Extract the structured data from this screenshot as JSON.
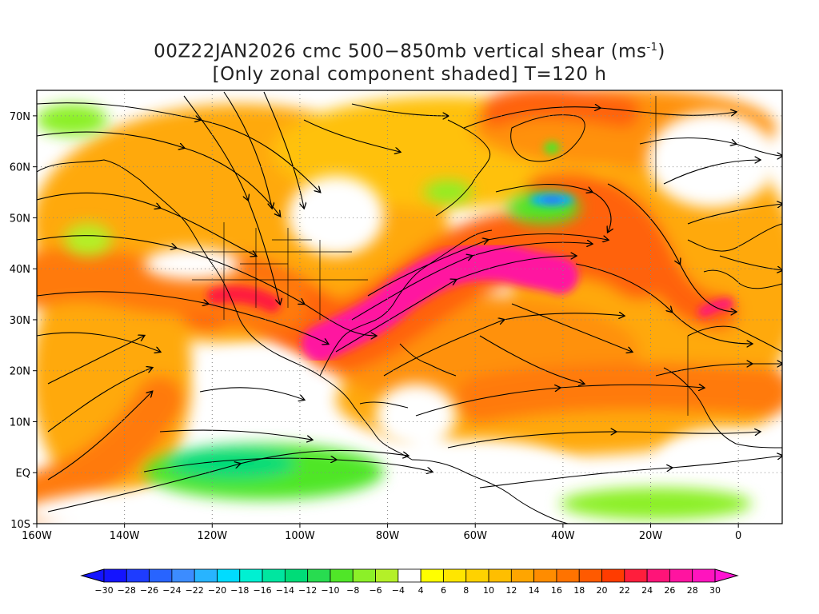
{
  "title": {
    "line1_prefix": "00Z22JAN2026 cmc 500−850mb vertical shear (ms",
    "line1_sup": "-1",
    "line1_suffix": ")",
    "line2": "[Only zonal component shaded] T=120 h"
  },
  "map": {
    "lon_range": [
      -160,
      10
    ],
    "lat_range": [
      -10,
      75
    ],
    "x_ticks": [
      {
        "lon": -160,
        "label": "160W"
      },
      {
        "lon": -140,
        "label": "140W"
      },
      {
        "lon": -120,
        "label": "120W"
      },
      {
        "lon": -100,
        "label": "100W"
      },
      {
        "lon": -80,
        "label": "80W"
      },
      {
        "lon": -60,
        "label": "60W"
      },
      {
        "lon": -40,
        "label": "40W"
      },
      {
        "lon": -20,
        "label": "20W"
      },
      {
        "lon": 0,
        "label": "0"
      }
    ],
    "y_ticks": [
      {
        "lat": 70,
        "label": "70N"
      },
      {
        "lat": 60,
        "label": "60N"
      },
      {
        "lat": 50,
        "label": "50N"
      },
      {
        "lat": 40,
        "label": "40N"
      },
      {
        "lat": 30,
        "label": "30N"
      },
      {
        "lat": 20,
        "label": "20N"
      },
      {
        "lat": 10,
        "label": "10N"
      },
      {
        "lat": 0,
        "label": "EQ"
      },
      {
        "lat": -10,
        "label": "10S"
      }
    ],
    "gridlines": "dotted"
  },
  "colorbar": {
    "labels": [
      "-30",
      "-28",
      "-26",
      "-24",
      "-22",
      "-20",
      "-18",
      "-16",
      "-14",
      "-12",
      "-10",
      "-8",
      "-6",
      "-4",
      "4",
      "6",
      "8",
      "10",
      "12",
      "14",
      "16",
      "18",
      "20",
      "22",
      "24",
      "26",
      "28",
      "30"
    ],
    "colors": [
      "#1414ff",
      "#1e3cff",
      "#2864ff",
      "#3c8cff",
      "#28b4ff",
      "#00dcff",
      "#00f0d2",
      "#00e6a0",
      "#00dc78",
      "#28dc50",
      "#50e628",
      "#8cf028",
      "#b4f028",
      "#ffffff",
      "#ffff00",
      "#ffe600",
      "#ffd200",
      "#ffbe00",
      "#ffa500",
      "#ff8c00",
      "#ff7300",
      "#ff5a00",
      "#ff3c00",
      "#ff1e3c",
      "#ff1478",
      "#ff14a0",
      "#ff14be"
    ],
    "min_color": "#1414ff",
    "max_color": "#ff14d2"
  }
}
